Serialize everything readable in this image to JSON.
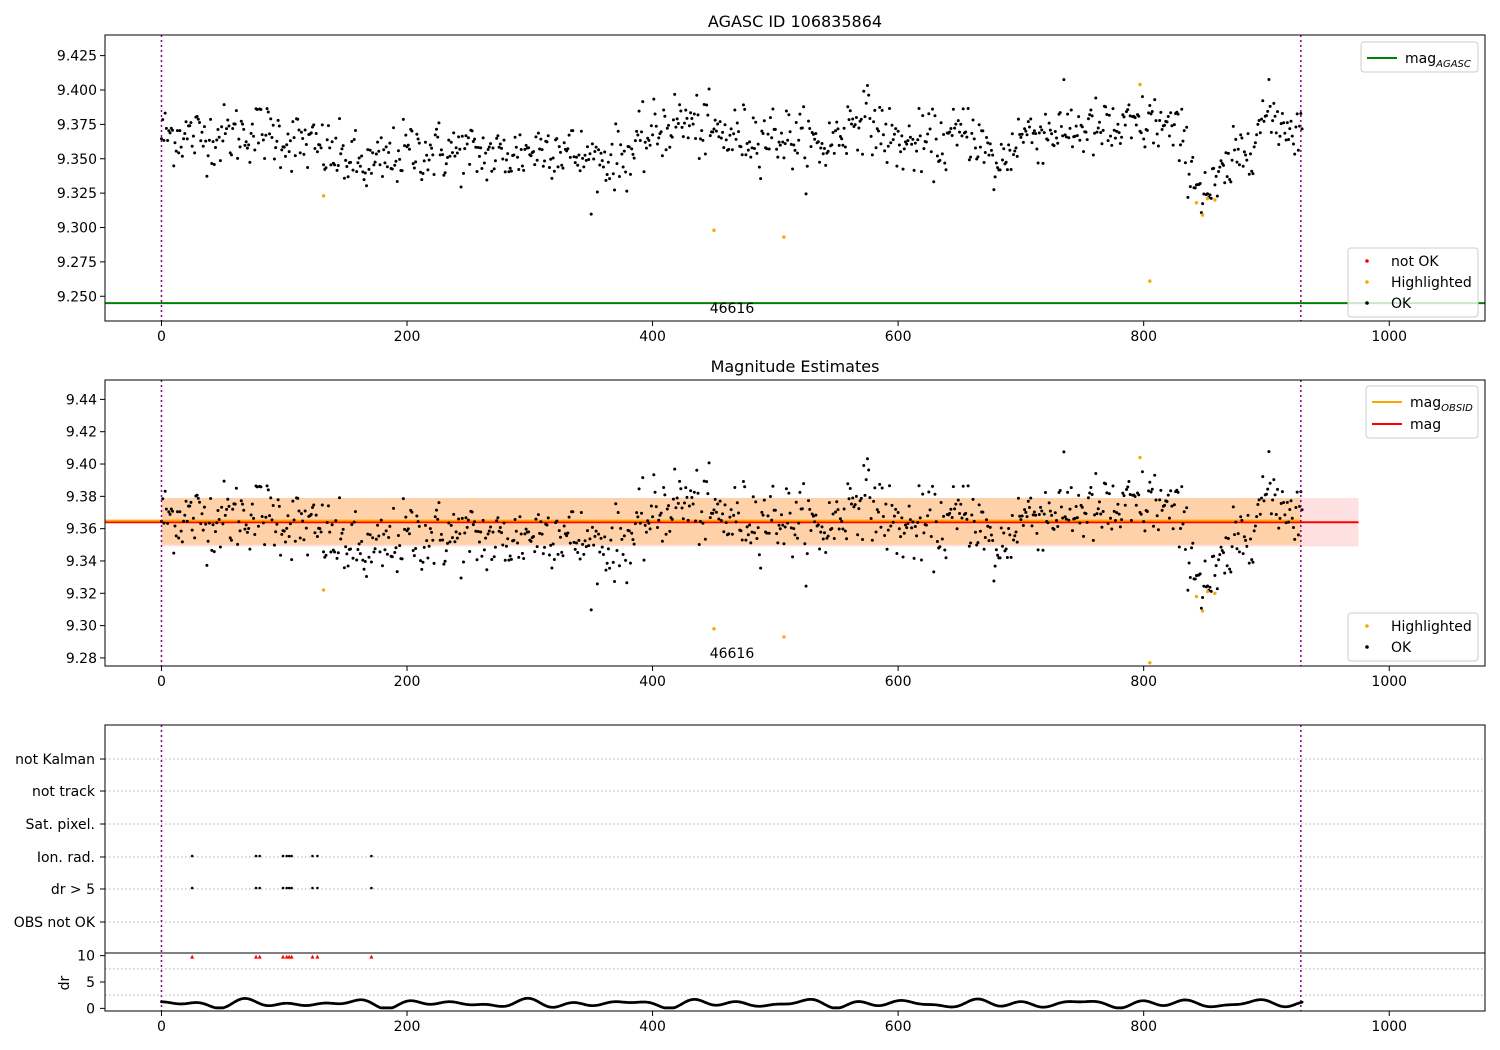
{
  "chart_data": [
    {
      "type": "scatter",
      "title": "AGASC ID 106835864",
      "xlim": [
        -46,
        1078
      ],
      "ylim": [
        9.232,
        9.44
      ],
      "xticks": [
        0,
        200,
        400,
        600,
        800,
        1000
      ],
      "yticks": [
        9.25,
        9.275,
        9.3,
        9.325,
        9.35,
        9.375,
        9.4,
        9.425
      ],
      "ytick_labels": [
        "9.250",
        "9.275",
        "9.300",
        "9.325",
        "9.350",
        "9.375",
        "9.400",
        "9.425"
      ],
      "vlines": [
        0,
        928
      ],
      "hline": {
        "name": "mag_AGASC",
        "y": 9.245,
        "color": "#008000"
      },
      "annotation": {
        "text": "46616",
        "x": 450,
        "y": 9.233
      },
      "legend_lines": [
        {
          "label": "mag",
          "sub": "AGASC",
          "color": "#008000"
        }
      ],
      "legend_points": [
        {
          "label": "not OK",
          "color": "#ff0000"
        },
        {
          "label": "Highlighted",
          "color": "#ffa500"
        },
        {
          "label": "OK",
          "color": "#000000"
        }
      ],
      "highlighted": [
        [
          132,
          9.323
        ],
        [
          450,
          9.298
        ],
        [
          507,
          9.293
        ],
        [
          797,
          9.404
        ],
        [
          805,
          9.261
        ],
        [
          843,
          9.318
        ],
        [
          848,
          9.309
        ],
        [
          852,
          9.321
        ],
        [
          858,
          9.32
        ]
      ]
    },
    {
      "type": "scatter",
      "title": "Magnitude Estimates",
      "xlim": [
        -46,
        1078
      ],
      "ylim": [
        9.275,
        9.452
      ],
      "xticks": [
        0,
        200,
        400,
        600,
        800,
        1000
      ],
      "yticks": [
        9.28,
        9.3,
        9.32,
        9.34,
        9.36,
        9.38,
        9.4,
        9.42,
        9.44
      ],
      "ytick_labels": [
        "9.28",
        "9.30",
        "9.32",
        "9.34",
        "9.36",
        "9.38",
        "9.40",
        "9.42",
        "9.44"
      ],
      "vlines": [
        0,
        928
      ],
      "mag": {
        "y": 9.364,
        "x_end": 975,
        "band": [
          9.349,
          9.379
        ]
      },
      "mag_obsid": {
        "y": 9.365,
        "x_end": 928,
        "band": [
          9.35,
          9.379
        ]
      },
      "annotation": {
        "text": "46616",
        "x": 450,
        "y": 9.281
      },
      "legend_lines": [
        {
          "label": "mag",
          "sub": "OBSID",
          "color": "#ffa500"
        },
        {
          "label": "mag",
          "sub": "",
          "color": "#ff0000"
        }
      ],
      "legend_points": [
        {
          "label": "Highlighted",
          "color": "#ffa500"
        },
        {
          "label": "OK",
          "color": "#000000"
        }
      ],
      "highlighted": [
        [
          132,
          9.322
        ],
        [
          450,
          9.298
        ],
        [
          507,
          9.293
        ],
        [
          797,
          9.404
        ],
        [
          805,
          9.277
        ],
        [
          843,
          9.318
        ],
        [
          848,
          9.309
        ],
        [
          852,
          9.321
        ],
        [
          858,
          9.32
        ]
      ]
    },
    {
      "type": "scatter",
      "flag_labels": [
        "not Kalman",
        "not track",
        "Sat. pixel.",
        "Ion. rad.",
        "dr > 5",
        "OBS not OK"
      ],
      "flag_events": {
        "Ion. rad.": [
          25,
          77,
          80,
          99,
          102,
          104,
          106,
          123,
          127,
          171
        ],
        "dr > 5": [
          25,
          77,
          80,
          99,
          102,
          104,
          106,
          123,
          127,
          171
        ]
      },
      "dr_ylabel": "dr",
      "dr_yticks": [
        0,
        5,
        10
      ],
      "dr_ylim": [
        -0.5,
        10.5
      ],
      "dr_clipped_color": "#ff0000",
      "xlim": [
        -46,
        1078
      ],
      "xticks": [
        0,
        200,
        400,
        600,
        800,
        1000
      ],
      "vlines": [
        0,
        928
      ]
    }
  ]
}
